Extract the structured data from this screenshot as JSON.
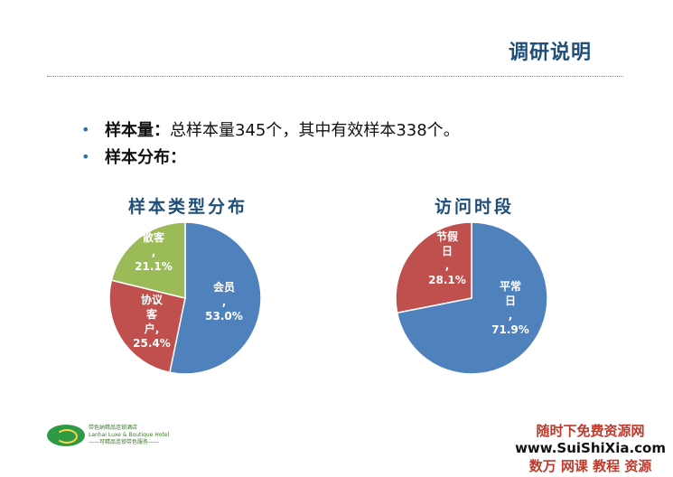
{
  "slide": {
    "title": "调研说明",
    "bullets": [
      {
        "label": "样本量：",
        "value": "总样本量345个，其中有效样本338个。"
      },
      {
        "label": "样本分布：",
        "value": ""
      }
    ],
    "logo": {
      "line1": "带色纳精品连锁酒店",
      "line2": "Lanhai Luxe & Boutique Hotel",
      "line3": "——可精品连锁带色服务——"
    },
    "watermark": {
      "line1": "随时下免费资源网",
      "line2": "www.SuiShiXia.com",
      "line3": "数万 网课 教程 资源"
    }
  },
  "colors": {
    "blue": "#4f81bd",
    "red": "#c0504d",
    "green": "#9bbb59",
    "title": "#1f4e79"
  },
  "chart_data": [
    {
      "type": "pie",
      "title": "样本类型分布",
      "slices": [
        {
          "label": "会员,",
          "value": 53.0,
          "pct": "53.0%",
          "color": "#4f81bd"
        },
        {
          "label": "协议客户,",
          "value": 25.4,
          "pct": "25.4%",
          "color": "#c0504d"
        },
        {
          "label": "散客,",
          "value": 21.1,
          "pct": "21.1%",
          "color": "#9bbb59"
        }
      ]
    },
    {
      "type": "pie",
      "title": "访问时段",
      "slices": [
        {
          "label": "平常日,",
          "value": 71.9,
          "pct": "71.9%",
          "color": "#4f81bd"
        },
        {
          "label": "节假日,",
          "value": 28.1,
          "pct": "28.1%",
          "color": "#c0504d"
        }
      ]
    }
  ]
}
